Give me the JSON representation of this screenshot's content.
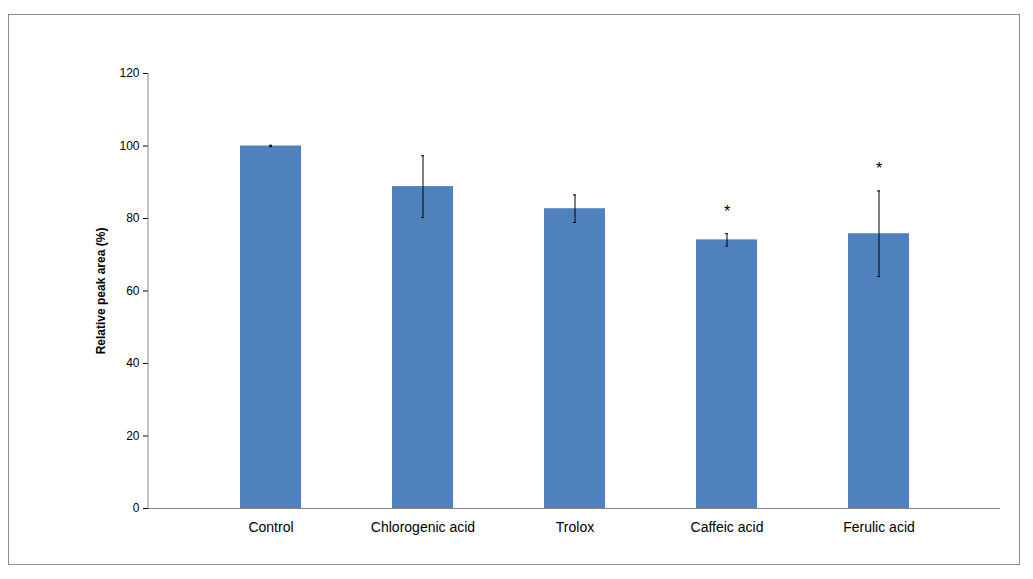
{
  "chart_data": {
    "type": "bar",
    "y_label": "Relative peak area (%)",
    "categories": [
      "Control",
      "Chlorogenic acid",
      "Trolox",
      "Caffeic acid",
      "Ferulic acid"
    ],
    "values": [
      100,
      88.8,
      82.7,
      74.1,
      75.8
    ],
    "errors": [
      0.2,
      8.5,
      3.8,
      1.7,
      11.8
    ],
    "color": "#4f81bd",
    "ylim": [
      0,
      120
    ],
    "yticks": [
      0,
      20,
      40,
      60,
      80,
      100,
      120
    ],
    "grid": false,
    "annotations": [
      {
        "category": "Caffeic acid",
        "text": "*"
      },
      {
        "category": "Ferulic acid",
        "text": "*"
      }
    ]
  }
}
